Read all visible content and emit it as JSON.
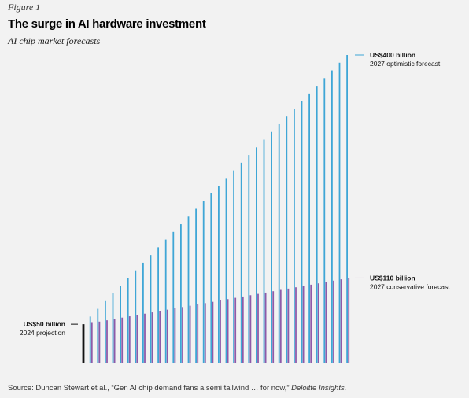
{
  "figure_label": "Figure 1",
  "title": "The surge in AI hardware investment",
  "subtitle": "AI chip market forecasts",
  "source": {
    "text": "Source: Duncan Stewart et al., “Gen AI chip demand fans a semi tailwind … for now,”",
    "publication": "Deloitte Insights,"
  },
  "colors": {
    "optimistic": "#3ea6d6",
    "conservative": "#8e5aa8",
    "baseline_bar": "#111111",
    "background": "#f2f2f2"
  },
  "chart_data": {
    "type": "bar",
    "title": "The surge in AI hardware investment",
    "subtitle": "AI chip market forecasts",
    "unit": "US$ billion",
    "ylim": [
      0,
      400
    ],
    "grid": false,
    "legend": "none",
    "series": [
      {
        "name": "2027 optimistic forecast",
        "values": [
          50,
          60,
          70,
          80,
          90,
          100,
          110,
          120,
          130,
          140,
          150,
          160,
          170,
          180,
          190,
          200,
          210,
          220,
          230,
          240,
          250,
          260,
          270,
          280,
          290,
          300,
          310,
          320,
          330,
          340,
          350,
          360,
          370,
          380,
          390,
          400
        ]
      },
      {
        "name": "2027 conservative forecast",
        "values": [
          50,
          51.7,
          53.4,
          55.1,
          56.9,
          58.6,
          60.3,
          62,
          63.7,
          65.4,
          67.1,
          68.9,
          70.6,
          72.3,
          74,
          75.7,
          77.4,
          79.1,
          80.9,
          82.6,
          84.3,
          86,
          87.7,
          89.4,
          91.1,
          92.9,
          94.6,
          96.3,
          98,
          99.7,
          101.4,
          103.1,
          104.9,
          106.6,
          108.3,
          110
        ]
      }
    ],
    "annotations": [
      {
        "value": "US$400 billion",
        "label": "2027 optimistic forecast"
      },
      {
        "value": "US$110 billion",
        "label": "2027 conservative forecast"
      },
      {
        "value": "US$50 billion",
        "label": "2024 projection"
      }
    ]
  }
}
